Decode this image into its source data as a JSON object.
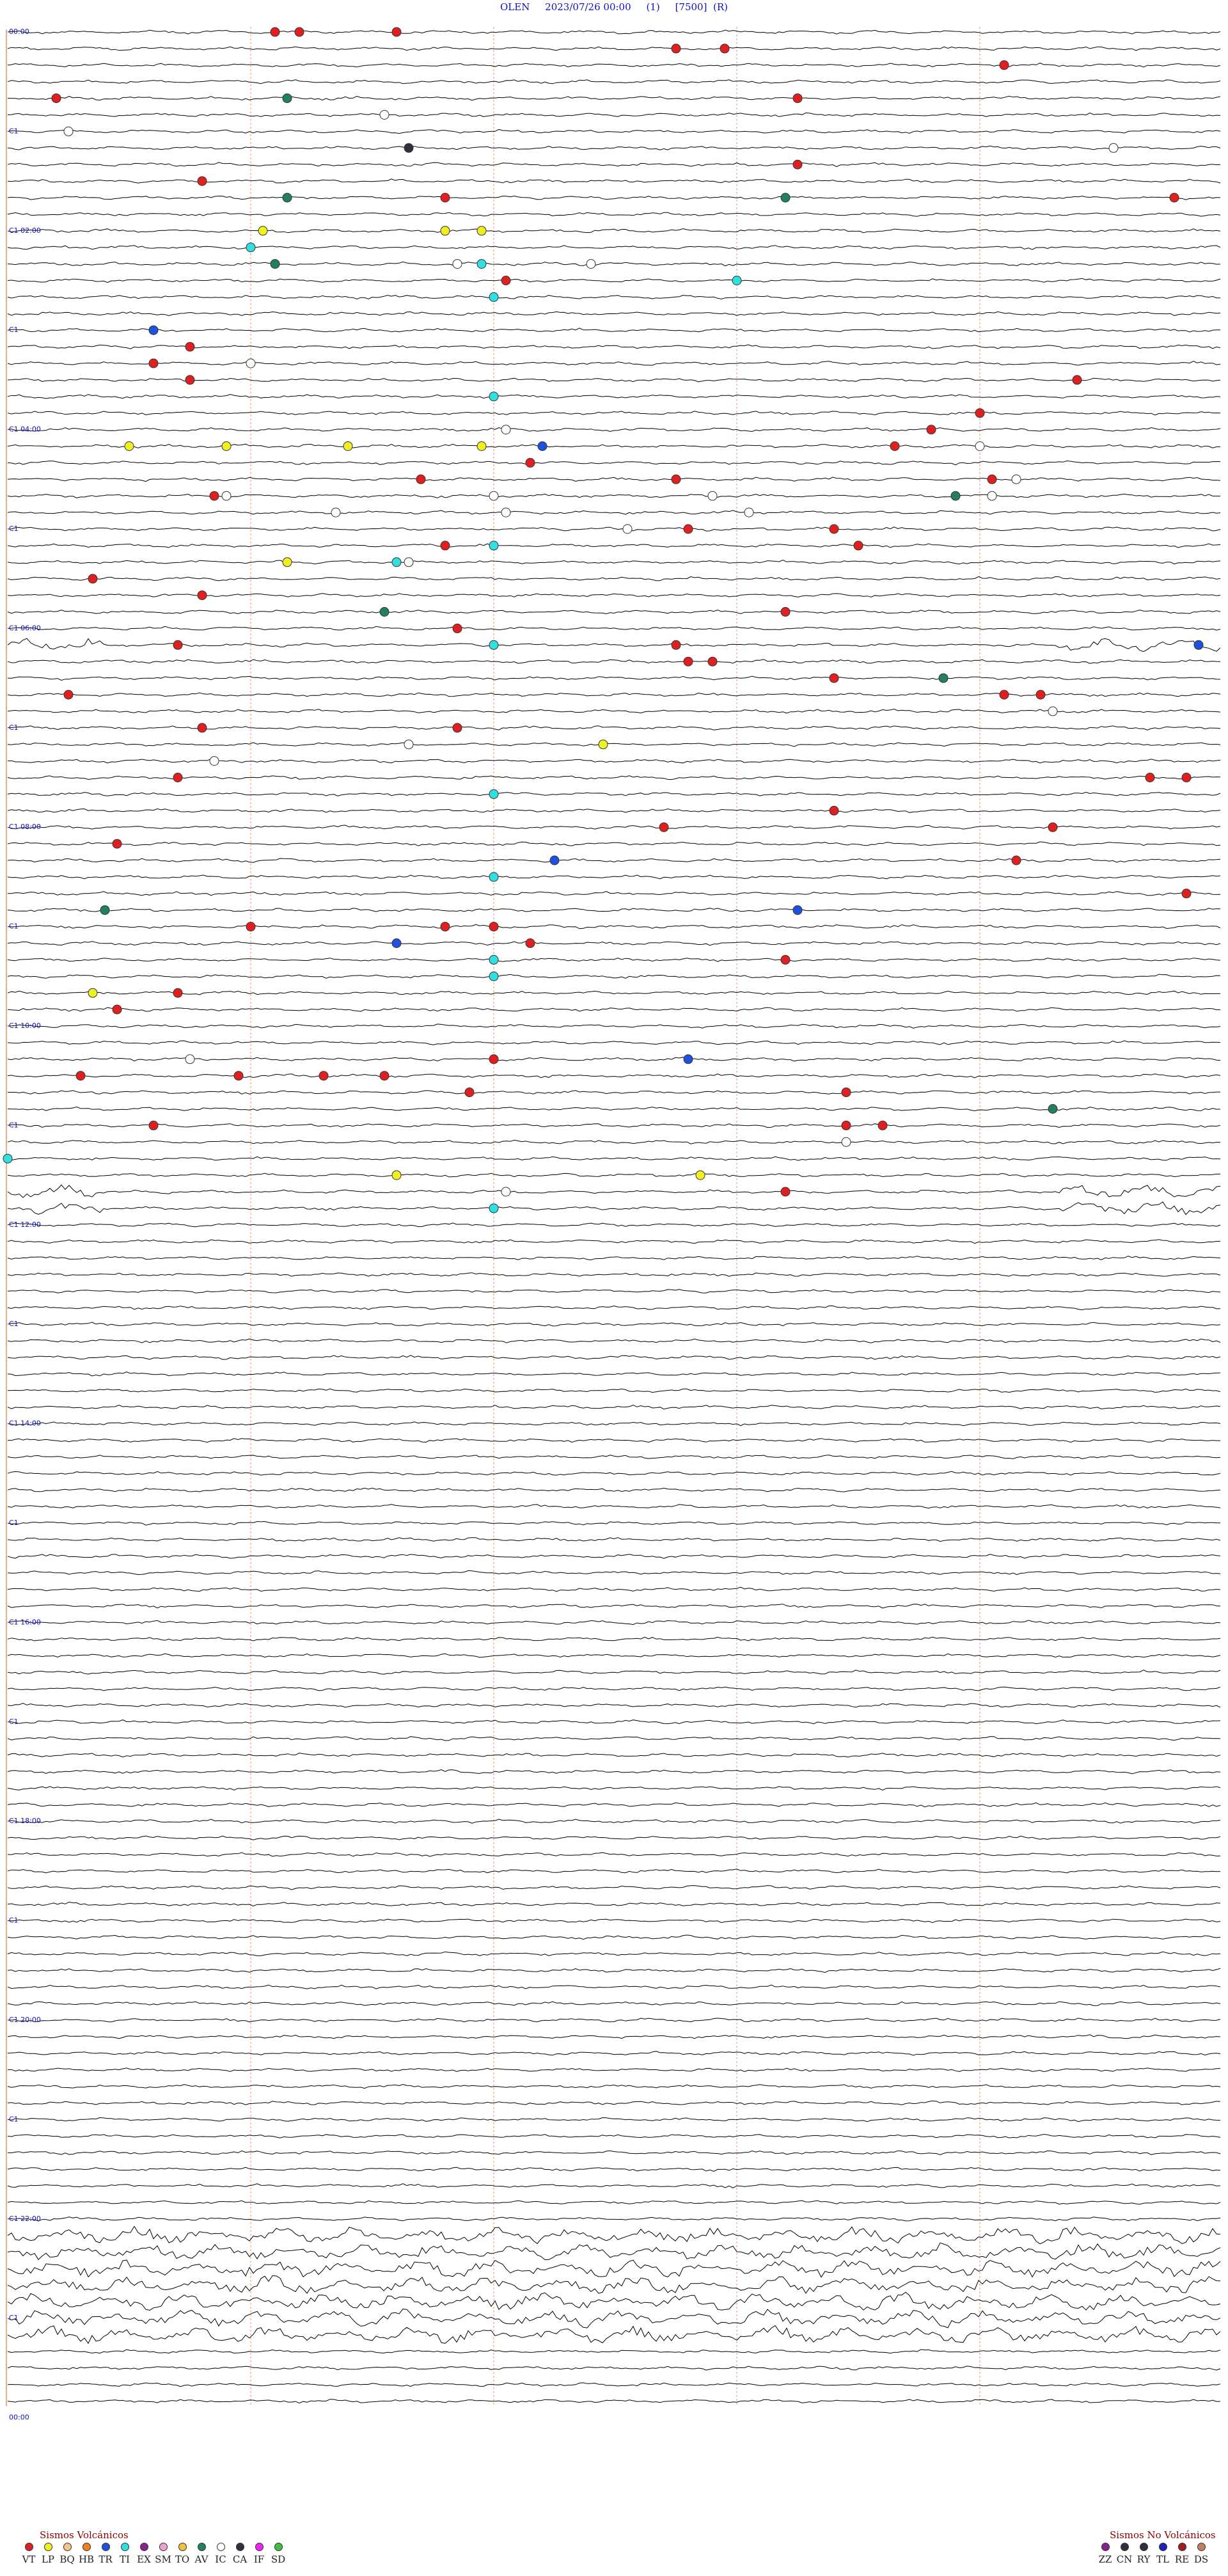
{
  "header": {
    "station": "OLEN",
    "date": "2023/07/26 00:00",
    "channel": "(1)",
    "gain": "[7500]",
    "flag": "(R)"
  },
  "colors": {
    "trace": "#000000",
    "hour_labels": "#1010c0",
    "minute_lines": "#e0906a",
    "drum_border": "#e0906a"
  },
  "chart_data": {
    "type": "helicorder",
    "hours_per_row_label": 2,
    "hour_labels": [
      "00:00",
      "02:00",
      "04:00",
      "06:00",
      "08:00",
      "10:00",
      "12:00",
      "14:00",
      "16:00",
      "18:00",
      "20:00",
      "22:00",
      "00:00"
    ],
    "odd_hour_labels": [
      "C1",
      "C1",
      "C1",
      "C1",
      "C1",
      "C1",
      "C1",
      "C1",
      "C1",
      "C1",
      "C1",
      "C1"
    ],
    "hour_label_prefix": "C1",
    "row_count": 144,
    "minutes_per_row": 10,
    "events": [
      {
        "row": 0,
        "minute": 2.2,
        "class": "VT"
      },
      {
        "row": 0,
        "minute": 2.4,
        "class": "VT"
      },
      {
        "row": 0,
        "minute": 3.2,
        "class": "VT"
      },
      {
        "row": 1,
        "minute": 5.5,
        "class": "VT"
      },
      {
        "row": 1,
        "minute": 5.9,
        "class": "VT"
      },
      {
        "row": 2,
        "minute": 8.2,
        "class": "VT"
      },
      {
        "row": 4,
        "minute": 2.3,
        "class": "AV"
      },
      {
        "row": 4,
        "minute": 0.4,
        "class": "VT"
      },
      {
        "row": 4,
        "minute": 6.5,
        "class": "VT"
      },
      {
        "row": 5,
        "minute": 3.1,
        "class": "IC"
      },
      {
        "row": 6,
        "minute": 0.5,
        "class": "IC"
      },
      {
        "row": 7,
        "minute": 3.3,
        "class": "CA"
      },
      {
        "row": 7,
        "minute": 9.1,
        "class": "IC"
      },
      {
        "row": 8,
        "minute": 6.5,
        "class": "VT"
      },
      {
        "row": 9,
        "minute": 1.6,
        "class": "VT"
      },
      {
        "row": 10,
        "minute": 3.6,
        "class": "VT"
      },
      {
        "row": 10,
        "minute": 6.4,
        "class": "AV"
      },
      {
        "row": 10,
        "minute": 2.3,
        "class": "AV"
      },
      {
        "row": 10,
        "minute": 9.6,
        "class": "VT"
      },
      {
        "row": 12,
        "minute": 2.1,
        "class": "LP"
      },
      {
        "row": 12,
        "minute": 3.6,
        "class": "LP"
      },
      {
        "row": 12,
        "minute": 3.9,
        "class": "LP"
      },
      {
        "row": 13,
        "minute": 2.0,
        "class": "TI"
      },
      {
        "row": 14,
        "minute": 3.7,
        "class": "IC"
      },
      {
        "row": 14,
        "minute": 4.8,
        "class": "IC"
      },
      {
        "row": 14,
        "minute": 2.2,
        "class": "AV"
      },
      {
        "row": 14,
        "minute": 3.9,
        "class": "TI"
      },
      {
        "row": 15,
        "minute": 4.1,
        "class": "VT"
      },
      {
        "row": 15,
        "minute": 6.0,
        "class": "TI"
      },
      {
        "row": 16,
        "minute": 4.0,
        "class": "TI"
      },
      {
        "row": 18,
        "minute": 1.2,
        "class": "TR"
      },
      {
        "row": 19,
        "minute": 1.5,
        "class": "VT"
      },
      {
        "row": 20,
        "minute": 1.2,
        "class": "VT"
      },
      {
        "row": 20,
        "minute": 2.0,
        "class": "IC"
      },
      {
        "row": 21,
        "minute": 1.5,
        "class": "VT"
      },
      {
        "row": 21,
        "minute": 8.8,
        "class": "VT"
      },
      {
        "row": 22,
        "minute": 4.0,
        "class": "TI"
      },
      {
        "row": 23,
        "minute": 8.0,
        "class": "VT"
      },
      {
        "row": 24,
        "minute": 4.1,
        "class": "IC"
      },
      {
        "row": 24,
        "minute": 7.6,
        "class": "VT"
      },
      {
        "row": 25,
        "minute": 1.0,
        "class": "LP"
      },
      {
        "row": 25,
        "minute": 1.8,
        "class": "LP"
      },
      {
        "row": 25,
        "minute": 2.8,
        "class": "LP"
      },
      {
        "row": 25,
        "minute": 3.9,
        "class": "LP"
      },
      {
        "row": 25,
        "minute": 4.4,
        "class": "TR"
      },
      {
        "row": 25,
        "minute": 7.3,
        "class": "VT"
      },
      {
        "row": 25,
        "minute": 8.0,
        "class": "IC"
      },
      {
        "row": 26,
        "minute": 4.3,
        "class": "VT"
      },
      {
        "row": 27,
        "minute": 3.4,
        "class": "VT"
      },
      {
        "row": 27,
        "minute": 5.5,
        "class": "VT"
      },
      {
        "row": 27,
        "minute": 8.1,
        "class": "VT"
      },
      {
        "row": 27,
        "minute": 8.3,
        "class": "IC"
      },
      {
        "row": 28,
        "minute": 1.8,
        "class": "IC"
      },
      {
        "row": 28,
        "minute": 4.0,
        "class": "IC"
      },
      {
        "row": 28,
        "minute": 5.8,
        "class": "IC"
      },
      {
        "row": 28,
        "minute": 7.8,
        "class": "AV"
      },
      {
        "row": 28,
        "minute": 8.1,
        "class": "IC"
      },
      {
        "row": 28,
        "minute": 1.7,
        "class": "VT"
      },
      {
        "row": 29,
        "minute": 2.7,
        "class": "IC"
      },
      {
        "row": 29,
        "minute": 4.1,
        "class": "IC"
      },
      {
        "row": 29,
        "minute": 6.1,
        "class": "IC"
      },
      {
        "row": 30,
        "minute": 5.1,
        "class": "IC"
      },
      {
        "row": 30,
        "minute": 5.6,
        "class": "VT"
      },
      {
        "row": 30,
        "minute": 6.8,
        "class": "VT"
      },
      {
        "row": 31,
        "minute": 3.6,
        "class": "VT"
      },
      {
        "row": 31,
        "minute": 4.0,
        "class": "TI"
      },
      {
        "row": 31,
        "minute": 7.0,
        "class": "VT"
      },
      {
        "row": 32,
        "minute": 2.3,
        "class": "LP"
      },
      {
        "row": 32,
        "minute": 3.2,
        "class": "TI"
      },
      {
        "row": 32,
        "minute": 3.3,
        "class": "IC"
      },
      {
        "row": 33,
        "minute": 0.7,
        "class": "VT"
      },
      {
        "row": 34,
        "minute": 1.6,
        "class": "VT"
      },
      {
        "row": 35,
        "minute": 3.1,
        "class": "AV"
      },
      {
        "row": 35,
        "minute": 6.4,
        "class": "VT"
      },
      {
        "row": 36,
        "minute": 3.7,
        "class": "VT"
      },
      {
        "row": 37,
        "minute": 5.5,
        "class": "VT"
      },
      {
        "row": 37,
        "minute": 1.4,
        "class": "VT"
      },
      {
        "row": 37,
        "minute": 4.0,
        "class": "TI"
      },
      {
        "row": 37,
        "minute": 9.8,
        "class": "TR"
      },
      {
        "row": 38,
        "minute": 5.6,
        "class": "VT"
      },
      {
        "row": 38,
        "minute": 5.8,
        "class": "VT"
      },
      {
        "row": 39,
        "minute": 6.8,
        "class": "VT"
      },
      {
        "row": 39,
        "minute": 7.7,
        "class": "AV"
      },
      {
        "row": 40,
        "minute": 0.5,
        "class": "VT"
      },
      {
        "row": 40,
        "minute": 8.2,
        "class": "VT"
      },
      {
        "row": 40,
        "minute": 8.5,
        "class": "VT"
      },
      {
        "row": 41,
        "minute": 8.6,
        "class": "IC"
      },
      {
        "row": 42,
        "minute": 1.6,
        "class": "VT"
      },
      {
        "row": 42,
        "minute": 3.7,
        "class": "VT"
      },
      {
        "row": 43,
        "minute": 3.3,
        "class": "IC"
      },
      {
        "row": 43,
        "minute": 4.9,
        "class": "LP"
      },
      {
        "row": 44,
        "minute": 1.7,
        "class": "IC"
      },
      {
        "row": 45,
        "minute": 1.4,
        "class": "VT"
      },
      {
        "row": 45,
        "minute": 9.4,
        "class": "VT"
      },
      {
        "row": 45,
        "minute": 9.7,
        "class": "VT"
      },
      {
        "row": 46,
        "minute": 4.0,
        "class": "TI"
      },
      {
        "row": 47,
        "minute": 6.8,
        "class": "VT"
      },
      {
        "row": 48,
        "minute": 5.4,
        "class": "VT"
      },
      {
        "row": 48,
        "minute": 8.6,
        "class": "VT"
      },
      {
        "row": 49,
        "minute": 0.9,
        "class": "VT"
      },
      {
        "row": 50,
        "minute": 4.5,
        "class": "TR"
      },
      {
        "row": 50,
        "minute": 8.3,
        "class": "VT"
      },
      {
        "row": 51,
        "minute": 4.0,
        "class": "TI"
      },
      {
        "row": 52,
        "minute": 9.7,
        "class": "VT"
      },
      {
        "row": 53,
        "minute": 6.5,
        "class": "TR"
      },
      {
        "row": 53,
        "minute": 0.8,
        "class": "AV"
      },
      {
        "row": 54,
        "minute": 2.0,
        "class": "VT"
      },
      {
        "row": 54,
        "minute": 3.6,
        "class": "VT"
      },
      {
        "row": 54,
        "minute": 4.0,
        "class": "VT"
      },
      {
        "row": 55,
        "minute": 3.2,
        "class": "TR"
      },
      {
        "row": 55,
        "minute": 4.3,
        "class": "VT"
      },
      {
        "row": 56,
        "minute": 4.0,
        "class": "TI"
      },
      {
        "row": 56,
        "minute": 6.4,
        "class": "VT"
      },
      {
        "row": 57,
        "minute": 4.0,
        "class": "TI"
      },
      {
        "row": 58,
        "minute": 0.7,
        "class": "LP"
      },
      {
        "row": 58,
        "minute": 1.4,
        "class": "VT"
      },
      {
        "row": 59,
        "minute": 0.9,
        "class": "VT"
      },
      {
        "row": 62,
        "minute": 5.6,
        "class": "TR"
      },
      {
        "row": 62,
        "minute": 1.5,
        "class": "IC"
      },
      {
        "row": 62,
        "minute": 4.0,
        "class": "VT"
      },
      {
        "row": 63,
        "minute": 0.6,
        "class": "VT"
      },
      {
        "row": 63,
        "minute": 1.9,
        "class": "VT"
      },
      {
        "row": 63,
        "minute": 2.6,
        "class": "VT"
      },
      {
        "row": 63,
        "minute": 3.1,
        "class": "VT"
      },
      {
        "row": 64,
        "minute": 3.8,
        "class": "VT"
      },
      {
        "row": 64,
        "minute": 6.9,
        "class": "VT"
      },
      {
        "row": 65,
        "minute": 8.6,
        "class": "AV"
      },
      {
        "row": 66,
        "minute": 1.2,
        "class": "VT"
      },
      {
        "row": 66,
        "minute": 6.9,
        "class": "VT"
      },
      {
        "row": 66,
        "minute": 7.2,
        "class": "VT"
      },
      {
        "row": 67,
        "minute": 6.9,
        "class": "IC"
      },
      {
        "row": 68,
        "minute": 0.0,
        "class": "TI"
      },
      {
        "row": 69,
        "minute": 3.2,
        "class": "LP"
      },
      {
        "row": 69,
        "minute": 5.7,
        "class": "LP"
      },
      {
        "row": 70,
        "minute": 4.1,
        "class": "IC"
      },
      {
        "row": 70,
        "minute": 6.4,
        "class": "VT"
      },
      {
        "row": 71,
        "minute": 4.0,
        "class": "TI"
      }
    ]
  },
  "legend_volcanic": {
    "title": "Sismos Volcánicos",
    "items": [
      {
        "code": "VT",
        "color": "#e02020"
      },
      {
        "code": "LP",
        "color": "#f0f020"
      },
      {
        "code": "BQ",
        "color": "#f4c48a"
      },
      {
        "code": "HB",
        "color": "#f08020"
      },
      {
        "code": "TR",
        "color": "#2050e0"
      },
      {
        "code": "TI",
        "color": "#30e0e0"
      },
      {
        "code": "EX",
        "color": "#8a2090"
      },
      {
        "code": "SM",
        "color": "#f0a0d0"
      },
      {
        "code": "TO",
        "color": "#f0c040"
      },
      {
        "code": "AV",
        "color": "#208060"
      },
      {
        "code": "IC",
        "color": "#ffffff"
      },
      {
        "code": "CA",
        "color": "#303040"
      },
      {
        "code": "IF",
        "color": "#f020f0"
      },
      {
        "code": "SD",
        "color": "#40c040"
      }
    ]
  },
  "legend_nonvolcanic": {
    "title": "Sismos No Volcánicos",
    "items": [
      {
        "code": "ZZ",
        "color": "#8a2090"
      },
      {
        "code": "CN",
        "color": "#303040"
      },
      {
        "code": "RY",
        "color": "#303040"
      },
      {
        "code": "TL",
        "color": "#2020c0"
      },
      {
        "code": "RE",
        "color": "#a02020"
      },
      {
        "code": "DS",
        "color": "#c08060"
      }
    ]
  }
}
